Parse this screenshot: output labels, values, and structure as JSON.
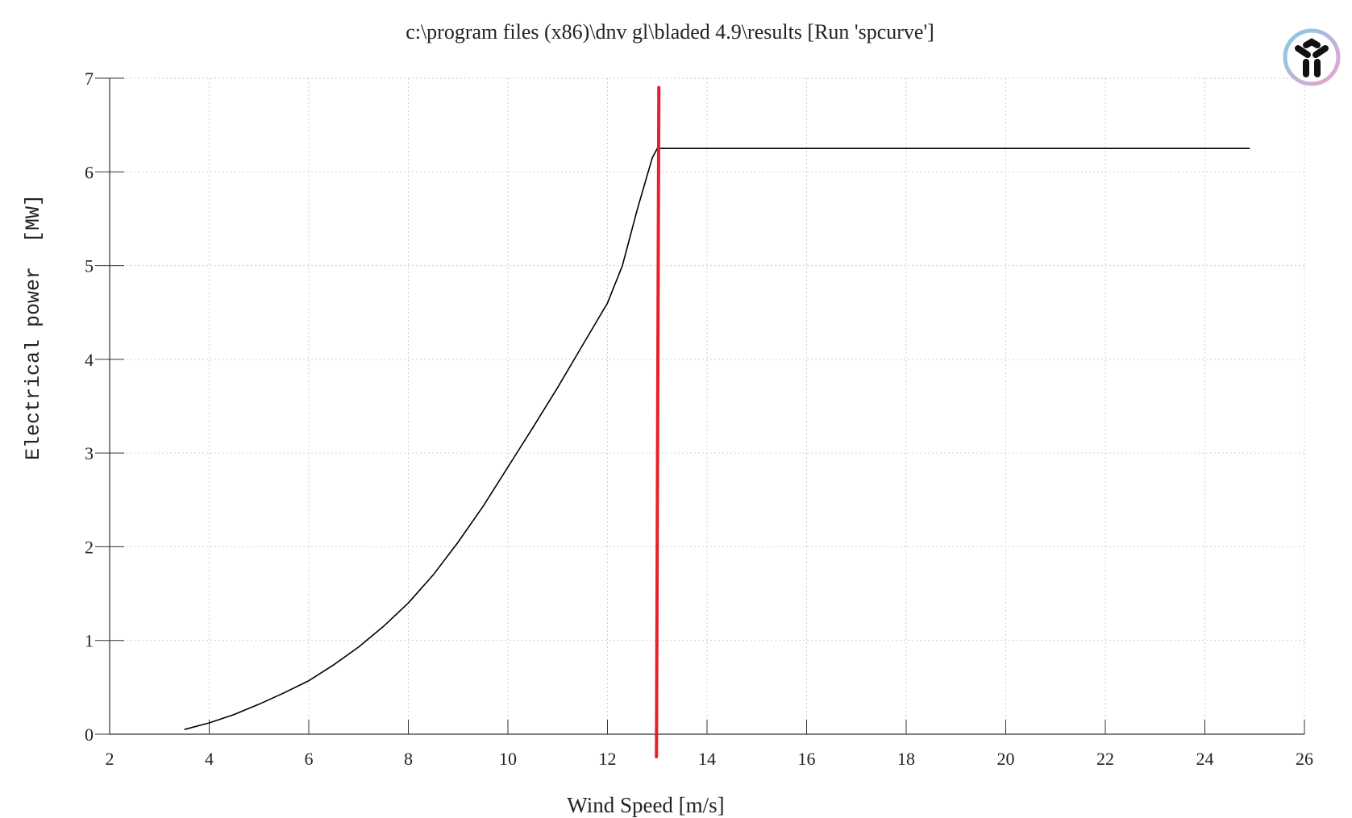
{
  "chart_data": {
    "type": "line",
    "title": "c:\\program files (x86)\\dnv gl\\bladed 4.9\\results [Run 'spcurve']",
    "xlabel": "Wind Speed [m/s]",
    "ylabel": "Electrical power  [MW]",
    "xlim": [
      2,
      26
    ],
    "ylim": [
      0,
      7
    ],
    "xticks": [
      2,
      4,
      6,
      8,
      10,
      12,
      14,
      16,
      18,
      20,
      22,
      24,
      26
    ],
    "yticks": [
      0,
      1,
      2,
      3,
      4,
      5,
      6,
      7
    ],
    "grid": true,
    "series": [
      {
        "color": "#000000",
        "x": [
          3.5,
          4,
          4.5,
          5,
          5.5,
          6,
          6.5,
          7,
          7.5,
          8,
          8.5,
          9,
          9.5,
          10,
          10.5,
          11,
          11.5,
          12,
          12.3,
          12.6,
          12.9,
          13,
          14,
          16,
          18,
          20,
          22,
          24,
          24.9
        ],
        "y": [
          0.05,
          0.12,
          0.21,
          0.32,
          0.44,
          0.57,
          0.74,
          0.93,
          1.15,
          1.4,
          1.7,
          2.05,
          2.43,
          2.85,
          3.27,
          3.7,
          4.15,
          4.6,
          5.0,
          5.6,
          6.15,
          6.25,
          6.25,
          6.25,
          6.25,
          6.25,
          6.25,
          6.25,
          6.25
        ]
      }
    ],
    "annotations": [
      {
        "type": "vertical-line",
        "color": "#e8202a",
        "x": 13.0,
        "y_top": 6.9
      }
    ]
  },
  "logo": {
    "icon": "y-shaped-logo-icon",
    "ring_colors": [
      "#7ecfe6",
      "#f0a0cc"
    ]
  }
}
